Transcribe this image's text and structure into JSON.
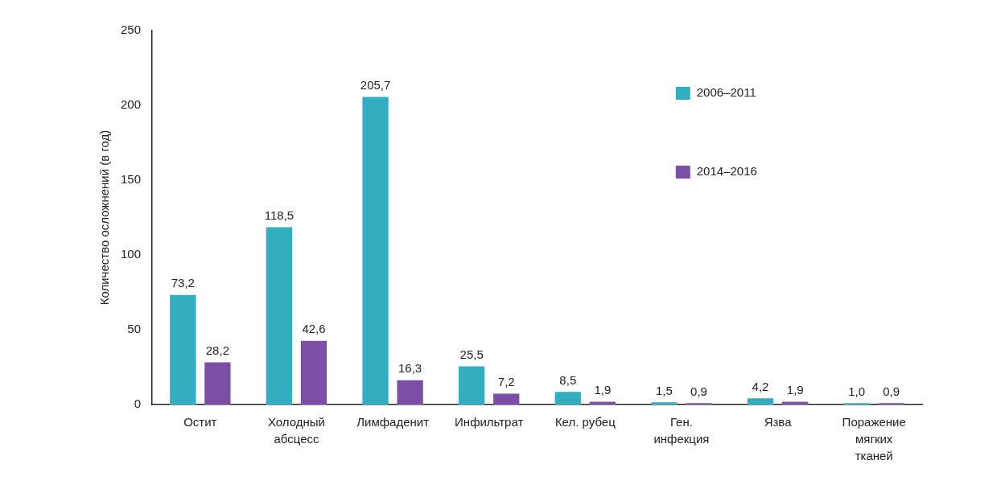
{
  "chart_data": {
    "type": "bar",
    "ylabel": "Количество осложнений (в год)",
    "categories": [
      "Остит",
      "Холодный абсцесс",
      "Лимфаденит",
      "Инфильтрат",
      "Кел. рубец",
      "Ген. инфекция",
      "Язва",
      "Поражение мягких тканей"
    ],
    "series": [
      {
        "name": "2006–2011",
        "color": "#33aec0",
        "values": [
          73.2,
          118.5,
          205.7,
          25.5,
          8.5,
          1.5,
          4.2,
          1.0
        ],
        "value_labels": [
          "73,2",
          "118,5",
          "205,7",
          "25,5",
          "8,5",
          "1,5",
          "4,2",
          "1,0"
        ]
      },
      {
        "name": "2014–2016",
        "color": "#7b4fa6",
        "values": [
          28.2,
          42.6,
          16.3,
          7.2,
          1.9,
          0.9,
          1.9,
          0.9
        ],
        "value_labels": [
          "28,2",
          "42,6",
          "16,3",
          "7,2",
          "1,9",
          "0,9",
          "1,9",
          "0,9"
        ]
      }
    ],
    "ylim": [
      0,
      250
    ],
    "yticks": [
      0,
      50,
      100,
      150,
      200,
      250
    ],
    "grid": false,
    "legend": "top right"
  }
}
